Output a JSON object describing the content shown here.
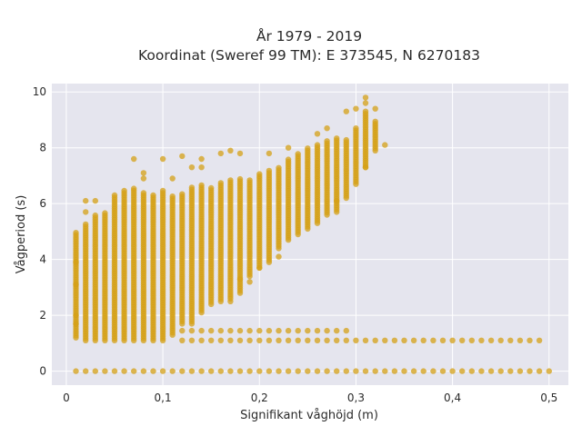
{
  "chart_data": {
    "type": "scatter",
    "title_line1": "År 1979 - 2019",
    "title_line2": "Koordinat (Sweref 99 TM): E 373545, N 6270183",
    "xlabel": "Signifikant våghöjd (m)",
    "ylabel": "Vågperiod (s)",
    "xlim": [
      -0.015,
      0.52
    ],
    "ylim": [
      -0.5,
      10.3
    ],
    "x_ticks": [
      0,
      0.1,
      0.2,
      0.3,
      0.4,
      0.5
    ],
    "x_tick_labels": [
      "0",
      "0,1",
      "0,2",
      "0,3",
      "0,4",
      "0,5"
    ],
    "y_ticks": [
      0,
      2,
      4,
      6,
      8,
      10
    ],
    "y_tick_labels": [
      "0",
      "2",
      "4",
      "6",
      "8",
      "10"
    ],
    "grid": true,
    "marker_color": "#d4a017",
    "plot_background": "#e5e5ee",
    "x_step": 0.01,
    "columns": [
      {
        "x": 0.01,
        "ymin": 1.2,
        "ymax": 5.0
      },
      {
        "x": 0.02,
        "ymin": 1.1,
        "ymax": 5.3
      },
      {
        "x": 0.03,
        "ymin": 1.1,
        "ymax": 5.6
      },
      {
        "x": 0.04,
        "ymin": 1.1,
        "ymax": 5.7
      },
      {
        "x": 0.05,
        "ymin": 1.1,
        "ymax": 6.3
      },
      {
        "x": 0.06,
        "ymin": 1.1,
        "ymax": 6.5
      },
      {
        "x": 0.07,
        "ymin": 1.1,
        "ymax": 6.6
      },
      {
        "x": 0.08,
        "ymin": 1.1,
        "ymax": 6.4
      },
      {
        "x": 0.09,
        "ymin": 1.1,
        "ymax": 6.3
      },
      {
        "x": 0.1,
        "ymin": 1.1,
        "ymax": 6.5
      },
      {
        "x": 0.11,
        "ymin": 1.3,
        "ymax": 6.3
      },
      {
        "x": 0.12,
        "ymin": 1.7,
        "ymax": 6.4
      },
      {
        "x": 0.13,
        "ymin": 1.7,
        "ymax": 6.6
      },
      {
        "x": 0.14,
        "ymin": 2.1,
        "ymax": 6.7
      },
      {
        "x": 0.15,
        "ymin": 2.4,
        "ymax": 6.6
      },
      {
        "x": 0.16,
        "ymin": 2.5,
        "ymax": 6.8
      },
      {
        "x": 0.17,
        "ymin": 2.6,
        "ymax": 6.9
      },
      {
        "x": 0.18,
        "ymin": 2.8,
        "ymax": 6.9
      },
      {
        "x": 0.19,
        "ymin": 3.4,
        "ymax": 6.9
      },
      {
        "x": 0.2,
        "ymin": 3.7,
        "ymax": 7.1
      },
      {
        "x": 0.21,
        "ymin": 3.9,
        "ymax": 7.2
      },
      {
        "x": 0.22,
        "ymin": 4.4,
        "ymax": 7.3
      },
      {
        "x": 0.23,
        "ymin": 4.7,
        "ymax": 7.6
      },
      {
        "x": 0.24,
        "ymin": 4.9,
        "ymax": 7.8
      },
      {
        "x": 0.25,
        "ymin": 5.1,
        "ymax": 8.0
      },
      {
        "x": 0.26,
        "ymin": 5.3,
        "ymax": 8.1
      },
      {
        "x": 0.27,
        "ymin": 5.6,
        "ymax": 8.3
      },
      {
        "x": 0.28,
        "ymin": 5.7,
        "ymax": 8.4
      },
      {
        "x": 0.29,
        "ymin": 6.2,
        "ymax": 8.3
      },
      {
        "x": 0.3,
        "ymin": 6.7,
        "ymax": 8.7
      },
      {
        "x": 0.31,
        "ymin": 7.3,
        "ymax": 9.3
      },
      {
        "x": 0.32,
        "ymin": 7.9,
        "ymax": 9.0
      }
    ],
    "outliers": [
      {
        "x": 0.01,
        "y": 3.9
      },
      {
        "x": 0.01,
        "y": 3.1
      },
      {
        "x": 0.01,
        "y": 2.0
      },
      {
        "x": 0.01,
        "y": 1.7
      },
      {
        "x": 0.02,
        "y": 6.1
      },
      {
        "x": 0.02,
        "y": 5.7
      },
      {
        "x": 0.03,
        "y": 6.1
      },
      {
        "x": 0.07,
        "y": 7.6
      },
      {
        "x": 0.08,
        "y": 7.1
      },
      {
        "x": 0.08,
        "y": 6.9
      },
      {
        "x": 0.1,
        "y": 7.6
      },
      {
        "x": 0.11,
        "y": 6.9
      },
      {
        "x": 0.12,
        "y": 7.7
      },
      {
        "x": 0.13,
        "y": 7.3
      },
      {
        "x": 0.14,
        "y": 7.6
      },
      {
        "x": 0.14,
        "y": 7.3
      },
      {
        "x": 0.16,
        "y": 7.8
      },
      {
        "x": 0.17,
        "y": 7.9
      },
      {
        "x": 0.18,
        "y": 7.8
      },
      {
        "x": 0.18,
        "y": 3.3
      },
      {
        "x": 0.19,
        "y": 3.2
      },
      {
        "x": 0.17,
        "y": 2.5
      },
      {
        "x": 0.21,
        "y": 7.8
      },
      {
        "x": 0.23,
        "y": 8.0
      },
      {
        "x": 0.26,
        "y": 8.5
      },
      {
        "x": 0.27,
        "y": 8.7
      },
      {
        "x": 0.29,
        "y": 9.3
      },
      {
        "x": 0.3,
        "y": 9.4
      },
      {
        "x": 0.31,
        "y": 9.8
      },
      {
        "x": 0.31,
        "y": 9.6
      },
      {
        "x": 0.32,
        "y": 9.4
      },
      {
        "x": 0.33,
        "y": 8.1
      },
      {
        "x": 0.31,
        "y": 7.3
      },
      {
        "x": 0.28,
        "y": 6.1
      },
      {
        "x": 0.22,
        "y": 4.1
      },
      {
        "x": 0.2,
        "y": 3.7
      }
    ],
    "bands": [
      {
        "y": 1.45,
        "xmin": 0.12,
        "xmax": 0.29
      },
      {
        "y": 1.1,
        "xmin": 0.12,
        "xmax": 0.49
      },
      {
        "y": 0.0,
        "xmin": 0.01,
        "xmax": 0.5
      }
    ]
  }
}
